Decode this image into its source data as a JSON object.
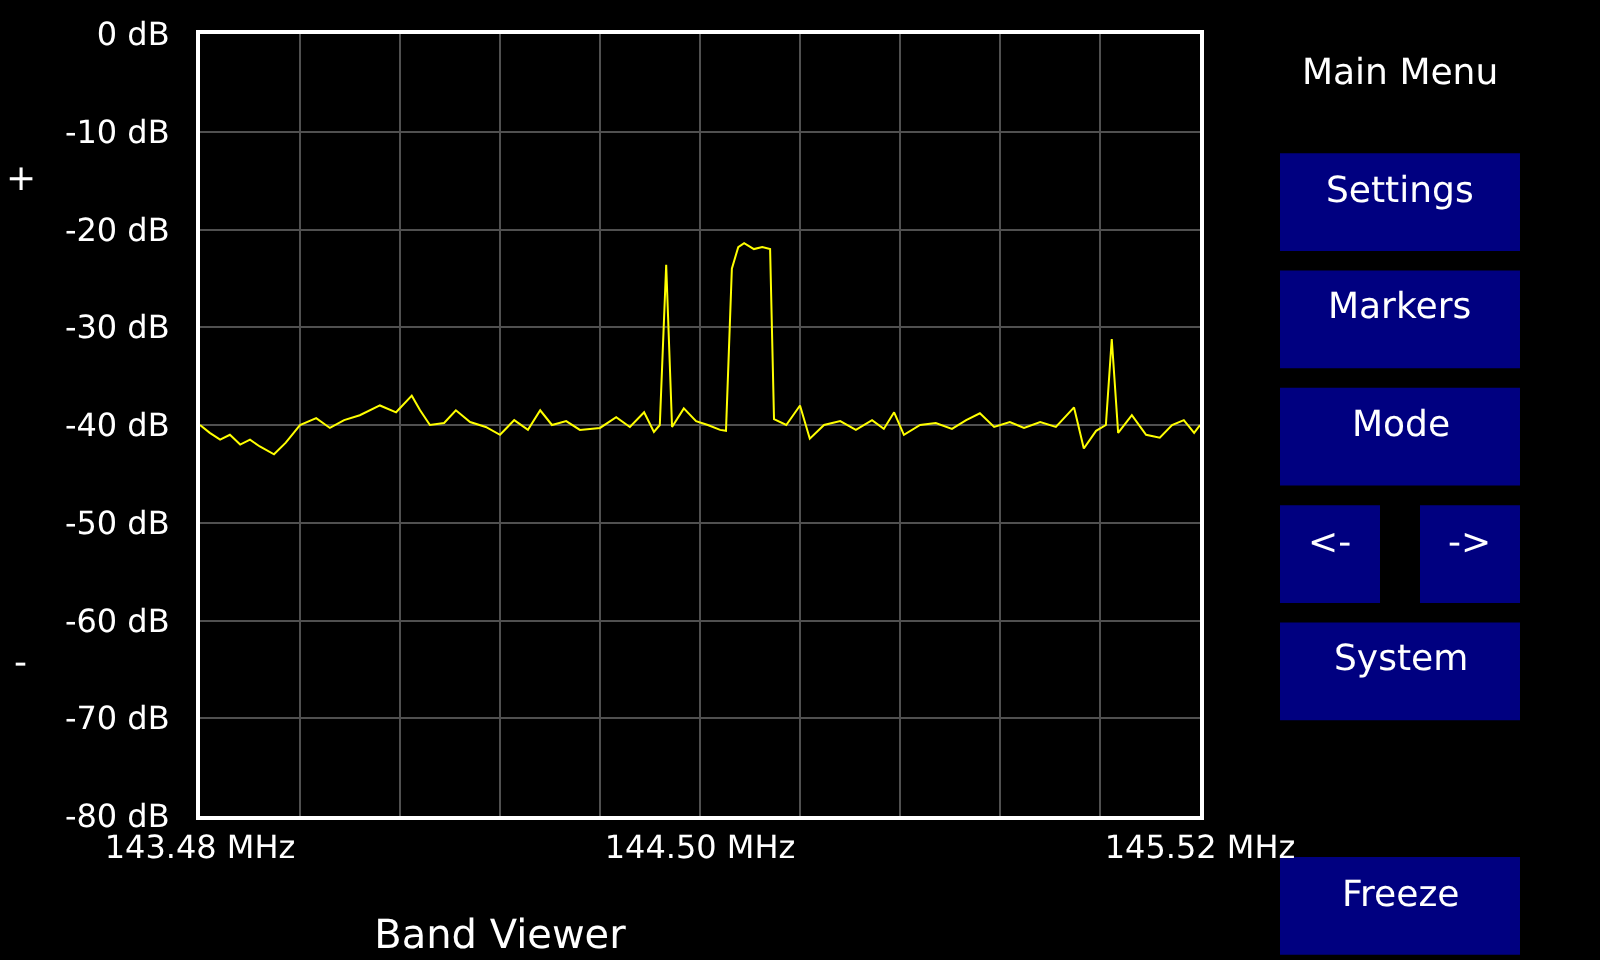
{
  "chart_data": {
    "type": "line",
    "title": "Band Viewer",
    "x": [
      143.48,
      143.5,
      143.521,
      143.541,
      143.562,
      143.582,
      143.602,
      143.631,
      143.655,
      143.684,
      143.717,
      143.745,
      143.774,
      143.806,
      143.847,
      143.88,
      143.912,
      143.929,
      143.949,
      143.978,
      144.002,
      144.031,
      144.063,
      144.092,
      144.121,
      144.149,
      144.174,
      144.198,
      144.227,
      144.255,
      144.296,
      144.329,
      144.357,
      144.386,
      144.406,
      144.418,
      144.431,
      144.443,
      144.467,
      144.492,
      144.516,
      144.541,
      144.553,
      144.565,
      144.578,
      144.59,
      144.61,
      144.627,
      144.643,
      144.651,
      144.676,
      144.704,
      144.724,
      144.753,
      144.786,
      144.818,
      144.851,
      144.875,
      144.896,
      144.916,
      144.949,
      144.981,
      145.014,
      145.043,
      145.071,
      145.1,
      145.132,
      145.161,
      145.194,
      145.226,
      145.263,
      145.283,
      145.308,
      145.328,
      145.34,
      145.353,
      145.381,
      145.41,
      145.438,
      145.463,
      145.487,
      145.508,
      145.52
    ],
    "series": [
      {
        "color": "#ffff00",
        "values": [
          -40,
          -40.8,
          -41.5,
          -41,
          -42,
          -41.5,
          -42.2,
          -43,
          -41.8,
          -40,
          -39.3,
          -40.3,
          -39.5,
          -39,
          -38,
          -38.7,
          -37,
          -38.5,
          -40,
          -39.8,
          -38.5,
          -39.7,
          -40.2,
          -41,
          -39.5,
          -40.5,
          -38.5,
          -40,
          -39.6,
          -40.5,
          -40.3,
          -39.2,
          -40.2,
          -38.7,
          -40.7,
          -40,
          -23.6,
          -40.2,
          -38.3,
          -39.6,
          -40,
          -40.5,
          -40.6,
          -24,
          -21.8,
          -21.4,
          -22,
          -21.8,
          -22,
          -39.4,
          -40,
          -38,
          -41.4,
          -40,
          -39.6,
          -40.5,
          -39.5,
          -40.4,
          -38.7,
          -41,
          -40,
          -39.8,
          -40.4,
          -39.5,
          -38.8,
          -40.2,
          -39.7,
          -40.3,
          -39.7,
          -40.2,
          -38.2,
          -42.4,
          -40.6,
          -40,
          -31.2,
          -40.8,
          -39,
          -41,
          -41.3,
          -40,
          -39.5,
          -40.8,
          -40
        ]
      }
    ],
    "xlim": [
      143.48,
      145.52
    ],
    "xticks": [
      {
        "value": 143.48,
        "label": "143.48 MHz"
      },
      {
        "value": 143.684,
        "label": null
      },
      {
        "value": 143.888,
        "label": null
      },
      {
        "value": 144.092,
        "label": null
      },
      {
        "value": 144.296,
        "label": null
      },
      {
        "value": 144.5,
        "label": "144.50 MHz"
      },
      {
        "value": 144.704,
        "label": null
      },
      {
        "value": 144.908,
        "label": null
      },
      {
        "value": 145.112,
        "label": null
      },
      {
        "value": 145.316,
        "label": null
      },
      {
        "value": 145.52,
        "label": "145.52 MHz"
      }
    ],
    "ylim": [
      -80,
      0
    ],
    "yticks": [
      {
        "value": 0,
        "label": "0 dB"
      },
      {
        "value": -10,
        "label": "-10 dB"
      },
      {
        "value": -20,
        "label": "-20 dB"
      },
      {
        "value": -30,
        "label": "-30 dB"
      },
      {
        "value": -40,
        "label": "-40 dB"
      },
      {
        "value": -50,
        "label": "-50 dB"
      },
      {
        "value": -60,
        "label": "-60 dB"
      },
      {
        "value": -70,
        "label": "-70 dB"
      },
      {
        "value": -80,
        "label": "-80 dB"
      }
    ],
    "grid": true,
    "marker": "none",
    "line_style": "solid",
    "annotations": [
      "+",
      "-",
      "Main Menu",
      "Settings",
      "Markers",
      "Mode",
      "<-",
      "->",
      "System",
      "Freeze"
    ]
  }
}
